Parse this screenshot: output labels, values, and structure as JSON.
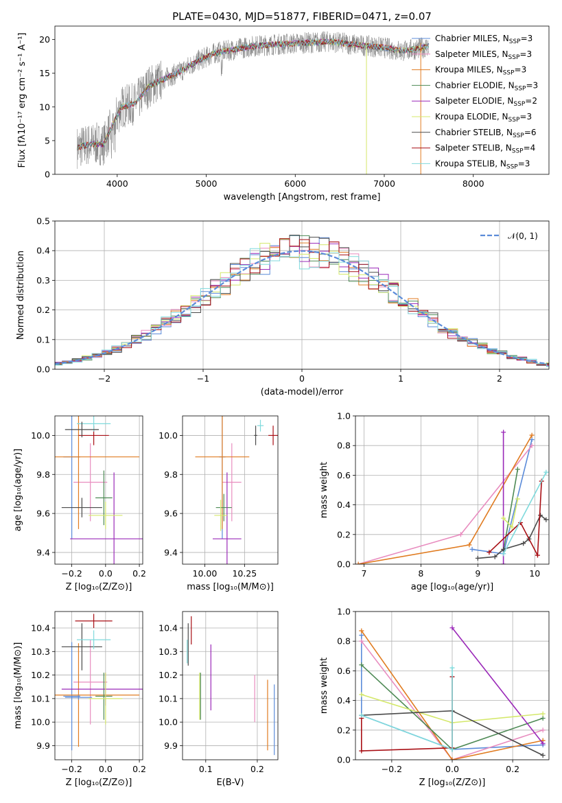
{
  "title": "PLATE=0430, MJD=51877, FIBERID=0471, z=0.07",
  "colors": {
    "chabrier_miles": "#5b8bd9",
    "salpeter_miles": "#e88cbf",
    "kroupa_miles": "#e07b20",
    "chabrier_elodie": "#4e8a55",
    "salpeter_elodie": "#9a28b8",
    "kroupa_elodie": "#d4e86a",
    "chabrier_stelib": "#4a4a4a",
    "salpeter_stelib": "#a80e14",
    "kroupa_stelib": "#7fdadc",
    "data_gray": "#808080",
    "normal_dashed": "#5b8bd9"
  },
  "chart_data": [
    {
      "id": "spectrum",
      "type": "line",
      "title": "PLATE=0430, MJD=51877, FIBERID=0471, z=0.07",
      "xlabel": "wavelength [Angstrom, rest frame]",
      "ylabel": "Flux [fλ10⁻¹⁷ erg cm⁻² s⁻¹ A⁻¹]",
      "xlim": [
        3300,
        8850
      ],
      "ylim": [
        0,
        22
      ],
      "xticks": [
        4000,
        5000,
        6000,
        7000,
        8000
      ],
      "yticks": [
        0,
        5,
        10,
        15,
        20
      ],
      "x_range": [
        3550,
        7500
      ],
      "legend": [
        "Chabrier MILES, N_SSP=3",
        "Salpeter MILES, N_SSP=3",
        "Kroupa MILES, N_SSP=3",
        "Chabrier ELODIE, N_SSP=3",
        "Salpeter ELODIE, N_SSP=2",
        "Kroupa ELODIE, N_SSP=3",
        "Chabrier STELIB, N_SSP=6",
        "Salpeter STELIB, N_SSP=4",
        "Kroupa STELIB, N_SSP=3"
      ],
      "legend_location": "right",
      "spectrum_shape": {
        "x": [
          3550,
          3700,
          3850,
          3950,
          4050,
          4200,
          4350,
          4500,
          4700,
          4900,
          5100,
          5300,
          5500,
          5800,
          6100,
          6400,
          6700,
          7000,
          7200,
          7400,
          7500
        ],
        "y": [
          4.0,
          4.5,
          4.5,
          7.5,
          10.0,
          10.5,
          13.0,
          14.0,
          15.2,
          16.8,
          18.0,
          18.5,
          19.0,
          19.3,
          19.5,
          19.7,
          19.2,
          18.8,
          18.3,
          18.7,
          19.0
        ]
      }
    },
    {
      "id": "residuals",
      "type": "step",
      "xlabel": "(data-model)/error",
      "ylabel": "Normed distribution",
      "xlim": [
        -2.5,
        2.5
      ],
      "ylim": [
        0,
        0.5
      ],
      "xticks": [
        -2,
        -1,
        0,
        1,
        2
      ],
      "xticklabels": [
        "−2",
        "−1",
        "0",
        "1",
        "2"
      ],
      "yticks": [
        0.0,
        0.1,
        0.2,
        0.3,
        0.4,
        0.5
      ],
      "yticklabels": [
        "0.0",
        "0.1",
        "0.2",
        "0.3",
        "0.4",
        "0.5"
      ],
      "legend": [
        "𝒩(0, 1)"
      ],
      "legend_location": "top-right",
      "bin_width": 0.1,
      "normal": {
        "mean": 0,
        "sigma": 1
      }
    },
    {
      "id": "age_vs_Z",
      "type": "errorbar",
      "xlabel": "Z [log₁₀(Z/Z⊙)]",
      "ylabel": "age [log₁₀(age/yr)]",
      "xlim": [
        -0.3,
        0.22
      ],
      "ylim": [
        9.34,
        10.1
      ],
      "xticks": [
        -0.2,
        0.0,
        0.2
      ],
      "xticklabels": [
        "−0.2",
        "0.0",
        "0.2"
      ],
      "yticks": [
        9.4,
        9.6,
        9.8,
        10.0
      ],
      "yticklabels": [
        "9.4",
        "9.6",
        "9.8",
        "10.0"
      ],
      "points": [
        {
          "series": "chabrier_miles",
          "x": -0.2,
          "xerr": 0.05,
          "y": 9.89,
          "yerr": 0.42
        },
        {
          "series": "salpeter_miles",
          "x": -0.09,
          "xerr": 0.1,
          "y": 9.76,
          "yerr": 0.2
        },
        {
          "series": "kroupa_miles",
          "x": -0.16,
          "xerr": 0.36,
          "y": 9.89,
          "yerr": 0.37
        },
        {
          "series": "chabrier_elodie",
          "x": -0.01,
          "xerr": 0.05,
          "y": 9.68,
          "yerr": 0.14
        },
        {
          "series": "salpeter_elodie",
          "x": 0.05,
          "xerr": 0.26,
          "y": 9.47,
          "yerr": 0.34
        },
        {
          "series": "kroupa_elodie",
          "x": 0.0,
          "xerr": 0.1,
          "y": 9.59,
          "yerr": 0.07
        },
        {
          "series": "chabrier_stelib",
          "x": -0.14,
          "xerr": 0.12,
          "y": 9.63,
          "yerr": 0.05
        },
        {
          "series": "salpeter_stelib",
          "x": -0.07,
          "xerr": 0.09,
          "y": 10.0,
          "yerr": 0.05
        },
        {
          "series": "kroupa_stelib",
          "x": -0.07,
          "xerr": 0.1,
          "y": 10.06,
          "yerr": 0.04
        },
        {
          "series": "chabrier_stelib",
          "x": -0.14,
          "xerr": 0.1,
          "y": 10.03,
          "yerr": 0.04
        }
      ]
    },
    {
      "id": "age_vs_mass",
      "type": "errorbar",
      "xlabel": "mass [log₁₀(M/M⊙)]",
      "ylabel": "",
      "xlim": [
        9.86,
        10.46
      ],
      "ylim": [
        9.34,
        10.1
      ],
      "xticks": [
        10.0,
        10.25
      ],
      "xticklabels": [
        "10.00",
        "10.25"
      ],
      "yticks": [
        9.4,
        9.6,
        9.8,
        10.0
      ],
      "yticklabels": [
        "9.4",
        "9.6",
        "9.8",
        "10.0"
      ],
      "points": [
        {
          "series": "chabrier_miles",
          "x": 10.11,
          "xerr": 0.02,
          "y": 9.89,
          "yerr": 0.42
        },
        {
          "series": "salpeter_miles",
          "x": 10.17,
          "xerr": 0.06,
          "y": 9.76,
          "yerr": 0.2
        },
        {
          "series": "kroupa_miles",
          "x": 10.11,
          "xerr": 0.17,
          "y": 9.89,
          "yerr": 0.37
        },
        {
          "series": "chabrier_elodie",
          "x": 10.12,
          "xerr": 0.05,
          "y": 9.63,
          "yerr": 0.07
        },
        {
          "series": "salpeter_elodie",
          "x": 10.14,
          "xerr": 0.09,
          "y": 9.47,
          "yerr": 0.34
        },
        {
          "series": "kroupa_elodie",
          "x": 10.1,
          "xerr": 0.04,
          "y": 9.59,
          "yerr": 0.08
        },
        {
          "series": "chabrier_stelib",
          "x": 10.32,
          "xerr": 0.01,
          "y": 10.0,
          "yerr": 0.05
        },
        {
          "series": "salpeter_stelib",
          "x": 10.43,
          "xerr": 0.03,
          "y": 10.0,
          "yerr": 0.05
        },
        {
          "series": "kroupa_stelib",
          "x": 10.35,
          "xerr": 0.02,
          "y": 10.05,
          "yerr": 0.03
        }
      ]
    },
    {
      "id": "weight_vs_age",
      "type": "line",
      "xlabel": "age  [log₁₀(age/yr)]",
      "ylabel": "mass weight",
      "xlim": [
        6.85,
        10.25
      ],
      "ylim": [
        0,
        1
      ],
      "xticks": [
        7,
        8,
        9,
        10
      ],
      "yticks": [
        0.0,
        0.2,
        0.4,
        0.6,
        0.8,
        1.0
      ],
      "yticklabels": [
        "0.0",
        "0.2",
        "0.4",
        "0.6",
        "0.8",
        "1.0"
      ],
      "series": [
        {
          "name": "chabrier_miles",
          "x": [
            8.9,
            9.45,
            9.95
          ],
          "y": [
            0.1,
            0.07,
            0.84
          ]
        },
        {
          "name": "salpeter_miles",
          "x": [
            6.9,
            8.7,
            9.95
          ],
          "y": [
            0.0,
            0.2,
            0.8
          ]
        },
        {
          "name": "kroupa_miles",
          "x": [
            6.9,
            8.85,
            9.95
          ],
          "y": [
            0.0,
            0.13,
            0.87
          ]
        },
        {
          "name": "chabrier_elodie",
          "x": [
            9.45,
            9.7
          ],
          "y": [
            0.09,
            0.64
          ]
        },
        {
          "name": "salpeter_elodie",
          "x": [
            9.45,
            9.45
          ],
          "y": [
            0.0,
            0.89
          ]
        },
        {
          "name": "kroupa_elodie",
          "x": [
            9.45,
            9.6,
            9.7
          ],
          "y": [
            0.31,
            0.25,
            0.44
          ]
        },
        {
          "name": "chabrier_stelib",
          "x": [
            9.0,
            9.3,
            9.45,
            9.8,
            9.9,
            10.1,
            10.2
          ],
          "y": [
            0.04,
            0.05,
            0.1,
            0.14,
            0.17,
            0.33,
            0.3
          ]
        },
        {
          "name": "salpeter_stelib",
          "x": [
            9.2,
            9.75,
            10.05,
            10.12
          ],
          "y": [
            0.08,
            0.28,
            0.06,
            0.56
          ]
        },
        {
          "name": "kroupa_stelib",
          "x": [
            9.45,
            10.2
          ],
          "y": [
            0.07,
            0.62
          ]
        }
      ]
    },
    {
      "id": "mass_vs_Z",
      "type": "errorbar",
      "xlabel": "Z [log₁₀(Z/Z⊙)]",
      "ylabel": "mass [log₁₀(M/M⊙)]",
      "xlim": [
        -0.3,
        0.22
      ],
      "ylim": [
        9.84,
        10.47
      ],
      "xticks": [
        -0.2,
        0.0,
        0.2
      ],
      "xticklabels": [
        "−0.2",
        "0.0",
        "0.2"
      ],
      "yticks": [
        9.9,
        10.0,
        10.1,
        10.2,
        10.3,
        10.4
      ],
      "yticklabels": [
        "9.9",
        "10.0",
        "10.1",
        "10.2",
        "10.3",
        "10.4"
      ],
      "points": [
        {
          "series": "chabrier_miles",
          "x": -0.2,
          "xerr": 0.05,
          "y": 10.11,
          "yerr": 0.23
        },
        {
          "series": "salpeter_miles",
          "x": -0.09,
          "xerr": 0.1,
          "y": 10.17,
          "yerr": 0.18
        },
        {
          "series": "kroupa_miles",
          "x": -0.16,
          "xerr": 0.36,
          "y": 10.115,
          "yerr": 0.22
        },
        {
          "series": "chabrier_elodie",
          "x": -0.01,
          "xerr": 0.05,
          "y": 10.11,
          "yerr": 0.1
        },
        {
          "series": "salpeter_elodie",
          "x": 0.0,
          "xerr": 0.26,
          "y": 10.14,
          "yerr": 0.07
        },
        {
          "series": "kroupa_elodie",
          "x": 0.0,
          "xerr": 0.1,
          "y": 10.1,
          "yerr": 0.11
        },
        {
          "series": "chabrier_stelib",
          "x": -0.14,
          "xerr": 0.12,
          "y": 10.32,
          "yerr": 0.1
        },
        {
          "series": "salpeter_stelib",
          "x": -0.07,
          "xerr": 0.11,
          "y": 10.43,
          "yerr": 0.03
        },
        {
          "series": "kroupa_stelib",
          "x": -0.07,
          "xerr": 0.1,
          "y": 10.35,
          "yerr": 0.04
        },
        {
          "series": "chabrier_miles",
          "x": -0.16,
          "xerr": 0.08,
          "y": 10.105,
          "yerr": 0.01
        }
      ]
    },
    {
      "id": "mass_vs_ebv",
      "type": "errorbar",
      "xlabel": "E(B-V)",
      "ylabel": "",
      "xlim": [
        0.055,
        0.24
      ],
      "ylim": [
        9.84,
        10.47
      ],
      "xticks": [
        0.1,
        0.2
      ],
      "xticklabels": [
        "0.1",
        "0.2"
      ],
      "yticks": [
        9.9,
        10.0,
        10.1,
        10.2,
        10.3,
        10.4
      ],
      "yticklabels": [
        "9.9",
        "10.0",
        "10.1",
        "10.2",
        "10.3",
        "10.4"
      ],
      "points": [
        {
          "series": "chabrier_miles",
          "x": 0.233,
          "xerr": 0,
          "y": 10.01,
          "yerr": 0.15
        },
        {
          "series": "salpeter_miles",
          "x": 0.195,
          "xerr": 0,
          "y": 10.1,
          "yerr": 0.1
        },
        {
          "series": "kroupa_miles",
          "x": 0.22,
          "xerr": 0,
          "y": 10.03,
          "yerr": 0.15
        },
        {
          "series": "chabrier_elodie",
          "x": 0.09,
          "xerr": 0,
          "y": 10.11,
          "yerr": 0.1
        },
        {
          "series": "salpeter_elodie",
          "x": 0.11,
          "xerr": 0,
          "y": 10.19,
          "yerr": 0.14
        },
        {
          "series": "kroupa_elodie",
          "x": 0.088,
          "xerr": 0,
          "y": 10.11,
          "yerr": 0.1
        },
        {
          "series": "chabrier_stelib",
          "x": 0.066,
          "xerr": 0,
          "y": 10.33,
          "yerr": 0.09
        },
        {
          "series": "salpeter_stelib",
          "x": 0.072,
          "xerr": 0,
          "y": 10.39,
          "yerr": 0.06
        },
        {
          "series": "kroupa_stelib",
          "x": 0.064,
          "xerr": 0,
          "y": 10.3,
          "yerr": 0.05
        }
      ]
    },
    {
      "id": "weight_vs_Z",
      "type": "line",
      "xlabel": "Z [log₁₀(Z/Z⊙)]",
      "ylabel": "mass weight",
      "xlim": [
        -0.32,
        0.32
      ],
      "ylim": [
        0,
        1
      ],
      "xticks": [
        -0.2,
        0.0,
        0.2
      ],
      "xticklabels": [
        "−0.2",
        "0.0",
        "0.2"
      ],
      "yticks": [
        0.0,
        0.2,
        0.4,
        0.6,
        0.8,
        1.0
      ],
      "yticklabels": [
        "0.0",
        "0.2",
        "0.4",
        "0.6",
        "0.8",
        "1.0"
      ],
      "series": [
        {
          "name": "chabrier_miles",
          "x": [
            -0.3,
            -0.3,
            0.0,
            0.3
          ],
          "y": [
            0.84,
            0.3,
            0.07,
            0.1
          ]
        },
        {
          "name": "salpeter_miles",
          "x": [
            -0.3,
            0.0,
            0.3
          ],
          "y": [
            0.8,
            0.0,
            0.2
          ]
        },
        {
          "name": "kroupa_miles",
          "x": [
            -0.3,
            0.0,
            0.3
          ],
          "y": [
            0.87,
            0.0,
            0.13
          ]
        },
        {
          "name": "chabrier_elodie",
          "x": [
            -0.3,
            0.0,
            0.3
          ],
          "y": [
            0.64,
            0.07,
            0.28
          ]
        },
        {
          "name": "salpeter_elodie",
          "x": [
            0.0,
            0.3
          ],
          "y": [
            0.89,
            0.11
          ]
        },
        {
          "name": "kroupa_elodie",
          "x": [
            -0.3,
            0.0,
            0.3
          ],
          "y": [
            0.44,
            0.25,
            0.31
          ]
        },
        {
          "name": "chabrier_stelib",
          "x": [
            -0.3,
            0.0,
            0.3
          ],
          "y": [
            0.3,
            0.33,
            0.03
          ]
        },
        {
          "name": "salpeter_stelib",
          "x": [
            -0.3,
            -0.3,
            0.0,
            0.0
          ],
          "y": [
            0.28,
            0.06,
            0.08,
            0.56
          ]
        },
        {
          "name": "kroupa_stelib",
          "x": [
            -0.3,
            0.0,
            0.0
          ],
          "y": [
            0.3,
            0.07,
            0.62
          ]
        }
      ]
    }
  ]
}
